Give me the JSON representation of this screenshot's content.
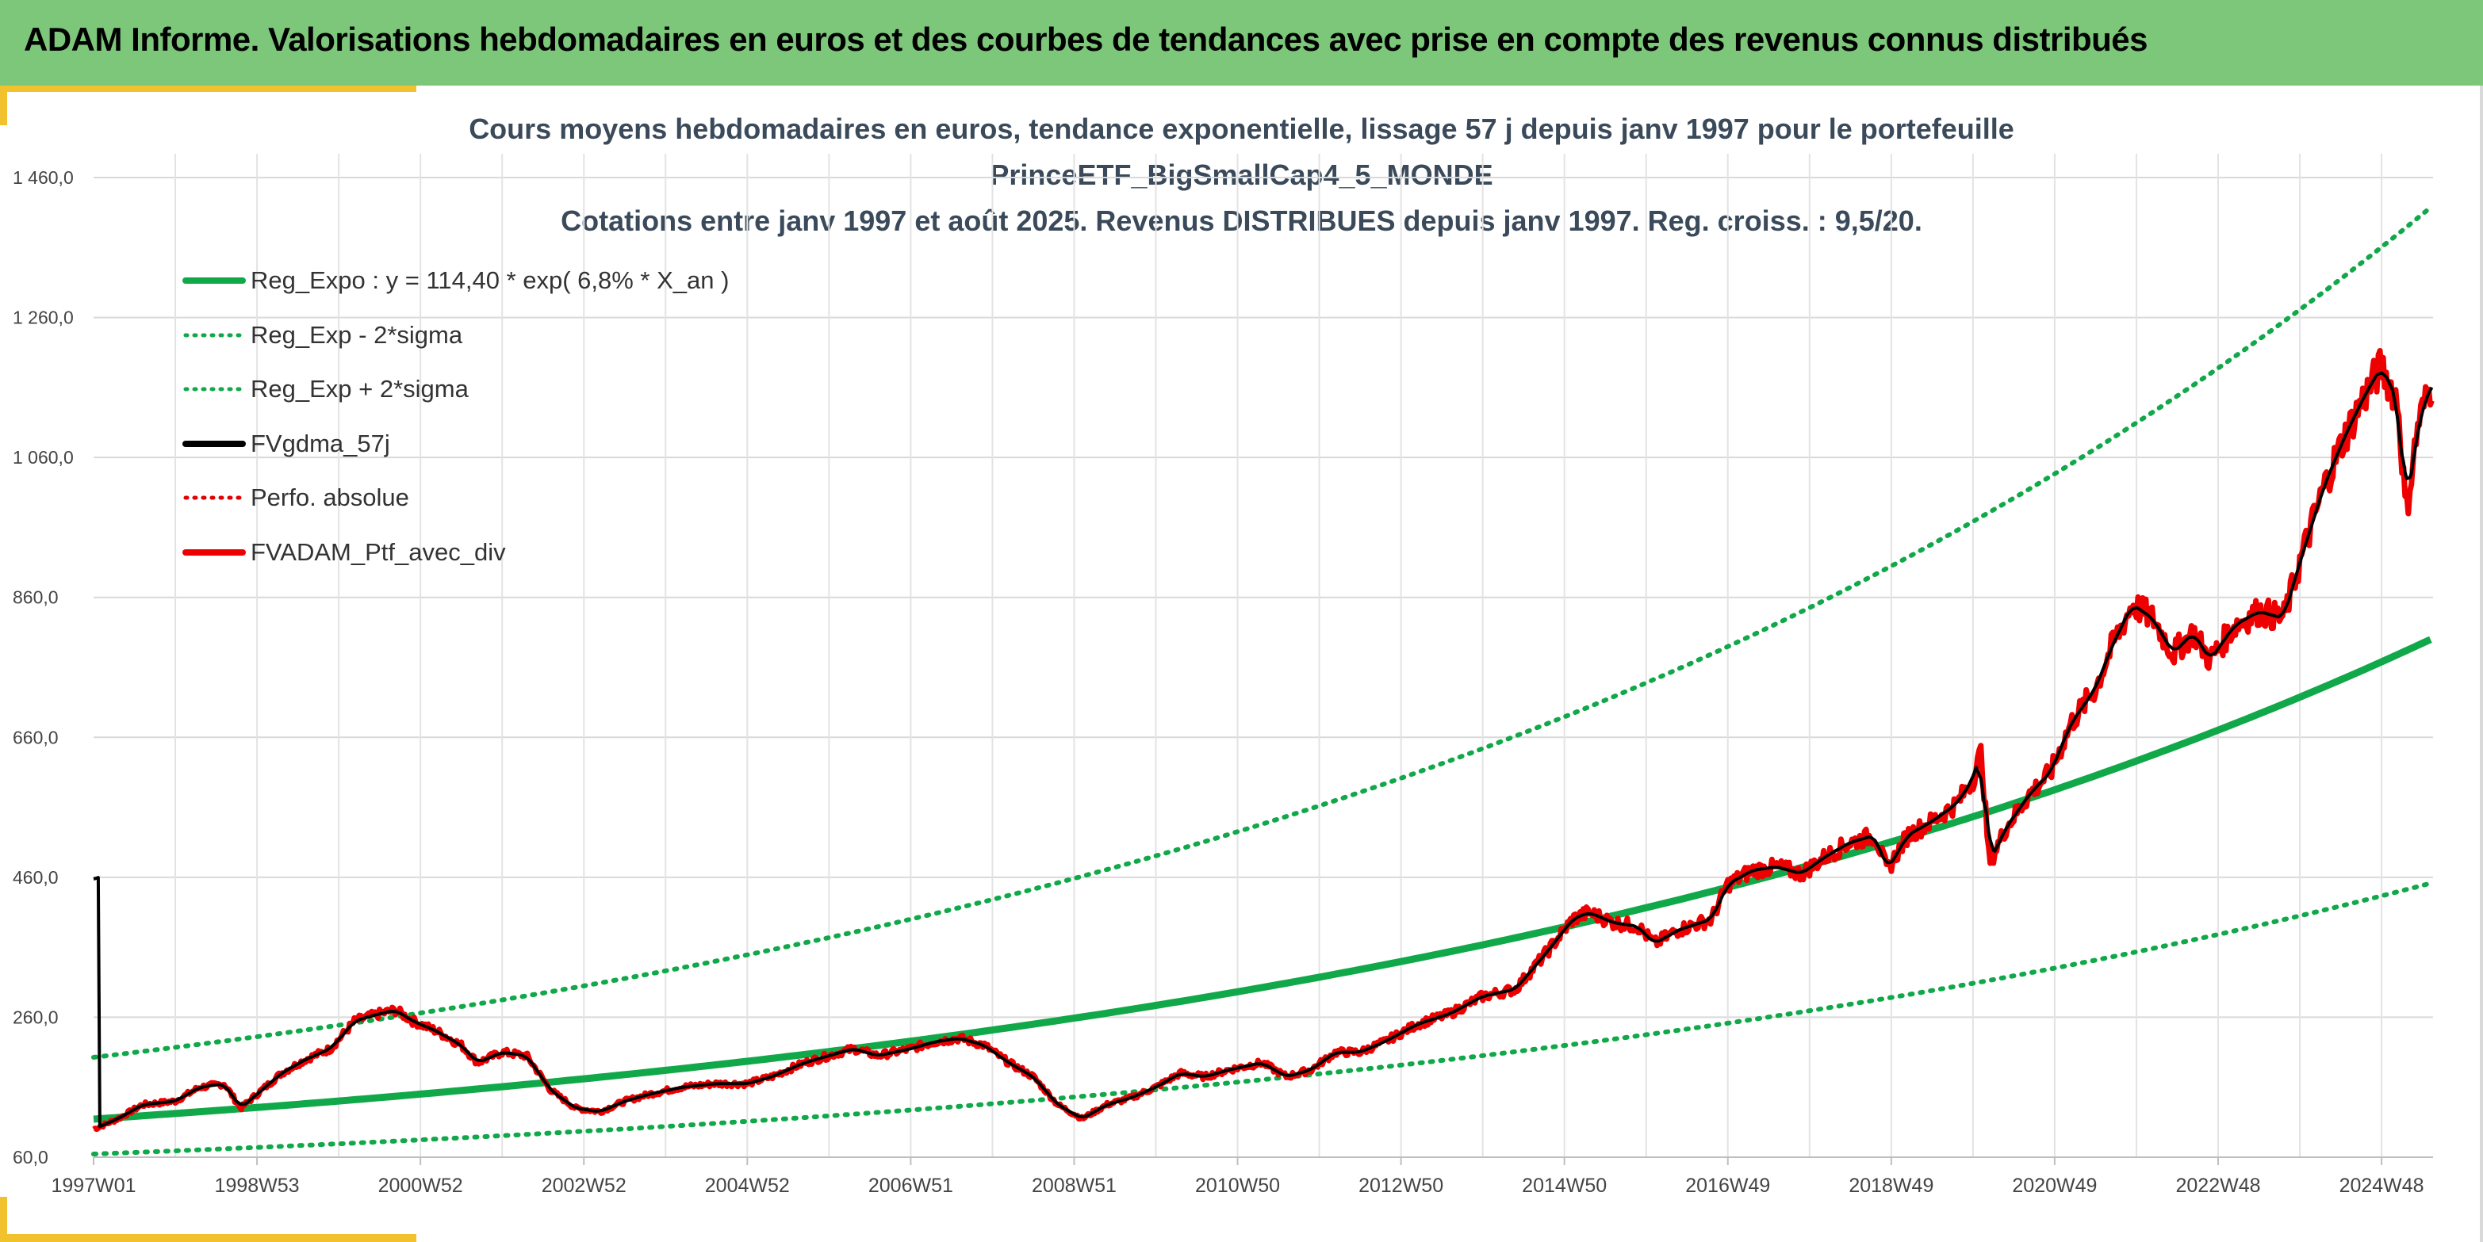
{
  "banner": {
    "title": "ADAM Informe. Valorisations hebdomadaires en euros et des courbes de tendances avec prise en compte des revenus connus distribués",
    "color": "#7dc77b"
  },
  "chart_data": {
    "type": "line",
    "title_lines": [
      "Cours moyens hebdomadaires en euros, tendance exponentielle, lissage 57 j depuis janv 1997 pour le portefeuille",
      "PrinceETF_BigSmallCap4_5_MONDE",
      "Cotations entre janv 1997 et août 2025. Revenus DISTRIBUES depuis janv 1997. Reg. croiss. : 9,5/20."
    ],
    "ylim": [
      60,
      1460
    ],
    "y_ticks": [
      "60,0",
      "260,0",
      "460,0",
      "660,0",
      "860,0",
      "1 060,0",
      "1 260,0",
      "1 460,0"
    ],
    "x_ticks": [
      "1997W01",
      "1998W53",
      "2000W52",
      "2002W52",
      "2004W52",
      "2006W51",
      "2008W51",
      "2010W50",
      "2012W50",
      "2014W50",
      "2016W49",
      "2018W49",
      "2020W49",
      "2022W48",
      "2024W48"
    ],
    "x_tick_years": [
      1997.0,
      1999.0,
      2001.0,
      2003.0,
      2005.0,
      2007.0,
      2009.0,
      2011.0,
      2013.0,
      2015.0,
      2017.0,
      2019.0,
      2021.0,
      2023.0,
      2025.0
    ],
    "x_range_years": [
      1997.0,
      2025.63
    ],
    "grid": true,
    "legend_position": "top-left",
    "regression": {
      "a": 114.4,
      "rate": 0.068,
      "sigma_log": 0.286
    },
    "series": [
      {
        "name": "Reg_Expo : y = 114,40 * exp( 6,8% *  X_an )",
        "color": "#11a84a",
        "style": "solid"
      },
      {
        "name": "Reg_Exp - 2*sigma",
        "color": "#11a84a",
        "style": "dotted"
      },
      {
        "name": "Reg_Exp + 2*sigma",
        "color": "#11a84a",
        "style": "dotted"
      },
      {
        "name": "FVgdma_57j",
        "color": "#000000",
        "style": "solid"
      },
      {
        "name": "Perfo. absolue",
        "color": "#e00000",
        "style": "dotted"
      },
      {
        "name": "FVADAM_Ptf_avec_div",
        "color": "#ee0000",
        "style": "solid"
      }
    ],
    "portfolio_points": [
      [
        1997.0,
        100
      ],
      [
        1997.3,
        115
      ],
      [
        1997.6,
        135
      ],
      [
        1998.0,
        140
      ],
      [
        1998.3,
        160
      ],
      [
        1998.6,
        165
      ],
      [
        1998.8,
        130
      ],
      [
        1999.0,
        150
      ],
      [
        1999.3,
        180
      ],
      [
        1999.6,
        200
      ],
      [
        1999.9,
        215
      ],
      [
        2000.2,
        255
      ],
      [
        2000.5,
        265
      ],
      [
        2000.7,
        270
      ],
      [
        2000.9,
        255
      ],
      [
        2001.2,
        240
      ],
      [
        2001.5,
        220
      ],
      [
        2001.7,
        195
      ],
      [
        2002.0,
        210
      ],
      [
        2002.3,
        205
      ],
      [
        2002.6,
        155
      ],
      [
        2002.9,
        130
      ],
      [
        2003.2,
        125
      ],
      [
        2003.5,
        140
      ],
      [
        2003.8,
        150
      ],
      [
        2004.2,
        160
      ],
      [
        2004.6,
        165
      ],
      [
        2005.0,
        165
      ],
      [
        2005.3,
        175
      ],
      [
        2005.7,
        195
      ],
      [
        2006.0,
        205
      ],
      [
        2006.3,
        215
      ],
      [
        2006.6,
        205
      ],
      [
        2007.0,
        215
      ],
      [
        2007.3,
        225
      ],
      [
        2007.6,
        230
      ],
      [
        2007.9,
        220
      ],
      [
        2008.2,
        195
      ],
      [
        2008.5,
        175
      ],
      [
        2008.8,
        135
      ],
      [
        2009.1,
        115
      ],
      [
        2009.4,
        135
      ],
      [
        2009.7,
        145
      ],
      [
        2010.0,
        160
      ],
      [
        2010.3,
        180
      ],
      [
        2010.6,
        175
      ],
      [
        2010.9,
        185
      ],
      [
        2011.3,
        195
      ],
      [
        2011.6,
        175
      ],
      [
        2011.9,
        185
      ],
      [
        2012.2,
        210
      ],
      [
        2012.5,
        210
      ],
      [
        2012.8,
        225
      ],
      [
        2013.2,
        250
      ],
      [
        2013.6,
        265
      ],
      [
        2014.0,
        290
      ],
      [
        2014.4,
        300
      ],
      [
        2014.8,
        355
      ],
      [
        2015.1,
        400
      ],
      [
        2015.3,
        410
      ],
      [
        2015.6,
        395
      ],
      [
        2015.9,
        390
      ],
      [
        2016.1,
        365
      ],
      [
        2016.4,
        385
      ],
      [
        2016.8,
        400
      ],
      [
        2017.0,
        450
      ],
      [
        2017.3,
        470
      ],
      [
        2017.6,
        475
      ],
      [
        2017.9,
        465
      ],
      [
        2018.2,
        490
      ],
      [
        2018.5,
        510
      ],
      [
        2018.8,
        520
      ],
      [
        2018.95,
        470
      ],
      [
        2019.2,
        520
      ],
      [
        2019.5,
        540
      ],
      [
        2019.8,
        565
      ],
      [
        2020.0,
        600
      ],
      [
        2020.1,
        640
      ],
      [
        2020.2,
        480
      ],
      [
        2020.4,
        530
      ],
      [
        2020.7,
        580
      ],
      [
        2020.95,
        610
      ],
      [
        2021.2,
        680
      ],
      [
        2021.5,
        730
      ],
      [
        2021.7,
        790
      ],
      [
        2021.95,
        850
      ],
      [
        2022.2,
        830
      ],
      [
        2022.45,
        780
      ],
      [
        2022.7,
        810
      ],
      [
        2022.9,
        770
      ],
      [
        2023.2,
        820
      ],
      [
        2023.5,
        840
      ],
      [
        2023.8,
        830
      ],
      [
        2024.0,
        910
      ],
      [
        2024.3,
        1020
      ],
      [
        2024.55,
        1090
      ],
      [
        2024.8,
        1150
      ],
      [
        2025.0,
        1190
      ],
      [
        2025.2,
        1140
      ],
      [
        2025.3,
        980
      ],
      [
        2025.45,
        1110
      ],
      [
        2025.63,
        1170
      ]
    ]
  }
}
